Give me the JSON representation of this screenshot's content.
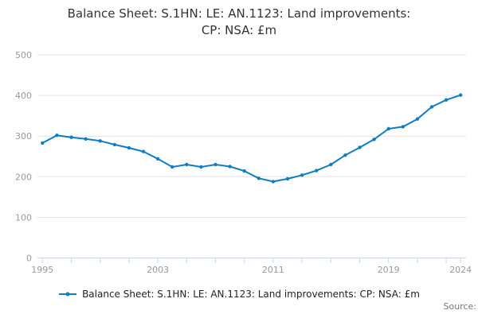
{
  "title": {
    "text": "Balance Sheet: S.1HN: LE: AN.1123: Land improvements: CP: NSA: £m",
    "line1": "Balance Sheet: S.1HN: LE: AN.1123: Land improvements:",
    "line2": "CP: NSA: £m"
  },
  "legend": {
    "label": "Balance Sheet: S.1HN: LE: AN.1123: Land improvements: CP: NSA: £m"
  },
  "footer": {
    "source_label": "Source:"
  },
  "colors": {
    "series": "#107dc0",
    "grid": "#e3e3e3",
    "axis": "#c8d7e8",
    "tick_label": "#999999",
    "title": "#333333",
    "legend_text": "#222222",
    "source_text": "#777777"
  },
  "chart_data": {
    "type": "line",
    "title": "Balance Sheet: S.1HN: LE: AN.1123: Land improvements: CP: NSA: £m",
    "xlabel": "",
    "ylabel": "",
    "ylim": [
      0,
      500
    ],
    "xlim": [
      1995,
      2025
    ],
    "yticks": [
      0,
      100,
      200,
      300,
      400,
      500
    ],
    "xticks_labeled": [
      1995,
      2003,
      2011,
      2019,
      2024
    ],
    "xtick_step_years": 2,
    "grid": "horizontal",
    "legend_position": "bottom",
    "markers": true,
    "series": [
      {
        "name": "Balance Sheet: S.1HN: LE: AN.1123: Land improvements: CP: NSA: £m",
        "x": [
          1995,
          1996,
          1997,
          1998,
          1999,
          2000,
          2001,
          2002,
          2003,
          2004,
          2005,
          2006,
          2007,
          2008,
          2009,
          2010,
          2011,
          2012,
          2013,
          2014,
          2015,
          2016,
          2017,
          2018,
          2019,
          2020,
          2021,
          2022,
          2023,
          2024
        ],
        "values": [
          283,
          302,
          297,
          293,
          288,
          279,
          271,
          262,
          244,
          224,
          230,
          224,
          230,
          225,
          214,
          196,
          188,
          195,
          204,
          215,
          230,
          253,
          272,
          292,
          318,
          323,
          342,
          372,
          389,
          401
        ]
      }
    ]
  }
}
